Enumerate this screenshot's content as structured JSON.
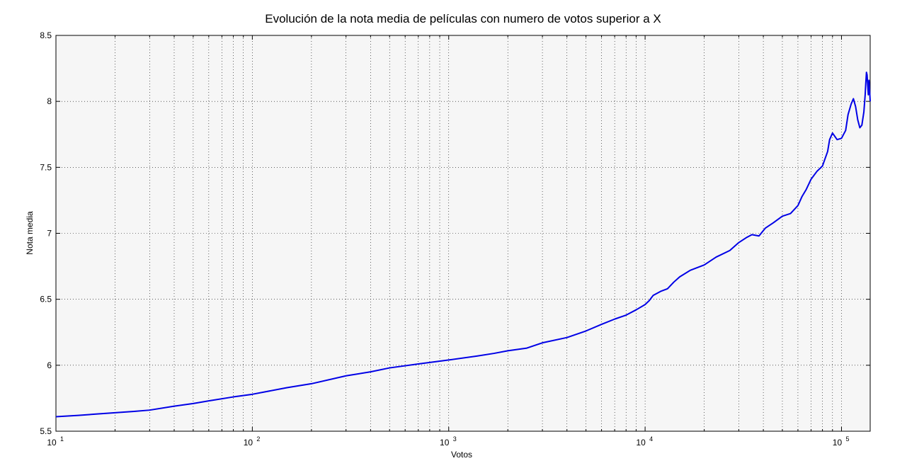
{
  "chart_data": {
    "type": "line",
    "title": "Evolución de la nota media de películas con numero de votos superior a X",
    "xlabel": "Votos",
    "ylabel": "Nota media",
    "xscale": "log",
    "xlim": [
      10,
      140000
    ],
    "ylim": [
      5.5,
      8.5
    ],
    "grid": true,
    "legend": "none",
    "x_tick_labels": [
      {
        "base": "10",
        "exp": "1"
      },
      {
        "base": "10",
        "exp": "2"
      },
      {
        "base": "10",
        "exp": "3"
      },
      {
        "base": "10",
        "exp": "4"
      },
      {
        "base": "10",
        "exp": "5"
      }
    ],
    "y_tick_labels": [
      "5.5",
      "6",
      "6.5",
      "7",
      "7.5",
      "8",
      "8.5"
    ],
    "series": [
      {
        "color": "#0000e6",
        "x": [
          10,
          13,
          16,
          20,
          25,
          30,
          40,
          50,
          60,
          80,
          100,
          150,
          200,
          300,
          400,
          500,
          700,
          1000,
          1400,
          1700,
          2000,
          2500,
          3000,
          4000,
          5000,
          6000,
          7000,
          8000,
          9000,
          10000,
          10500,
          11000,
          12000,
          13000,
          14000,
          15000,
          17000,
          20000,
          23000,
          27000,
          30000,
          33000,
          35000,
          38000,
          41000,
          45000,
          50000,
          55000,
          60000,
          63000,
          66000,
          70000,
          75000,
          80000,
          85000,
          87000,
          90000,
          95000,
          100000,
          105000,
          108000,
          112000,
          115000,
          118000,
          121000,
          124000,
          127000,
          130000,
          132000,
          133000,
          134000,
          135000,
          136000,
          137000,
          138000,
          139000,
          140000
        ],
        "values": [
          5.61,
          5.62,
          5.63,
          5.64,
          5.65,
          5.66,
          5.69,
          5.71,
          5.73,
          5.76,
          5.78,
          5.83,
          5.86,
          5.92,
          5.95,
          5.98,
          6.01,
          6.04,
          6.07,
          6.09,
          6.11,
          6.13,
          6.17,
          6.21,
          6.26,
          6.31,
          6.35,
          6.38,
          6.42,
          6.46,
          6.49,
          6.53,
          6.56,
          6.58,
          6.63,
          6.67,
          6.72,
          6.76,
          6.82,
          6.87,
          6.93,
          6.97,
          6.99,
          6.98,
          7.04,
          7.08,
          7.13,
          7.15,
          7.21,
          7.28,
          7.33,
          7.41,
          7.47,
          7.51,
          7.62,
          7.71,
          7.76,
          7.71,
          7.72,
          7.78,
          7.9,
          7.98,
          8.02,
          7.96,
          7.86,
          7.8,
          7.82,
          7.92,
          8.05,
          8.14,
          8.22,
          8.2,
          8.12,
          8.05,
          8.16,
          8.09,
          8.0
        ]
      }
    ]
  }
}
